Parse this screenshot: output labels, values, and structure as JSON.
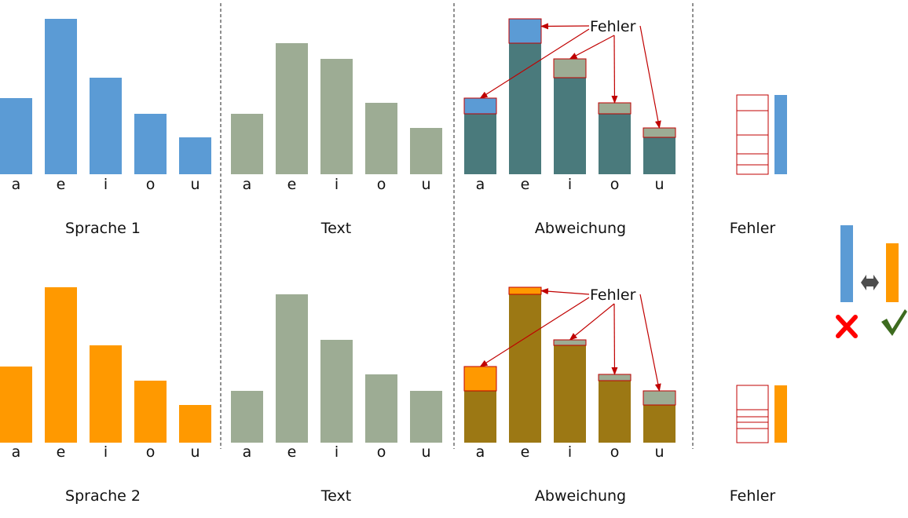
{
  "rows": [
    {
      "id": "row-1",
      "language_label": "Sprache 1",
      "language_values": [
        97,
        198,
        123,
        77,
        47
      ],
      "text_values": [
        77,
        167,
        147,
        91,
        59
      ]
    },
    {
      "id": "row-2",
      "language_label": "Sprache 2",
      "language_values": [
        97,
        198,
        124,
        79,
        48
      ],
      "text_values": [
        66,
        189,
        131,
        87,
        66
      ]
    }
  ],
  "vowels": [
    "a",
    "e",
    "i",
    "o",
    "u"
  ],
  "panel_labels": {
    "text": "Text",
    "deviation": "Abweichung",
    "error": "Fehler"
  },
  "callout_label": "Fehler",
  "colors": {
    "language_1": "#5b9bd5",
    "language_2": "#ff9900",
    "text": "#9dac94",
    "overlap_1": "#4a7a7c",
    "overlap_2": "#9c7814",
    "error_outline": "#c00000",
    "divider": "#222222",
    "cross": "#ff0000",
    "check": "#3d6b1f",
    "compare_arrow": "#4d4d4d"
  },
  "legend_icons": [
    "compare-arrow-icon",
    "cross-icon",
    "check-icon"
  ]
}
